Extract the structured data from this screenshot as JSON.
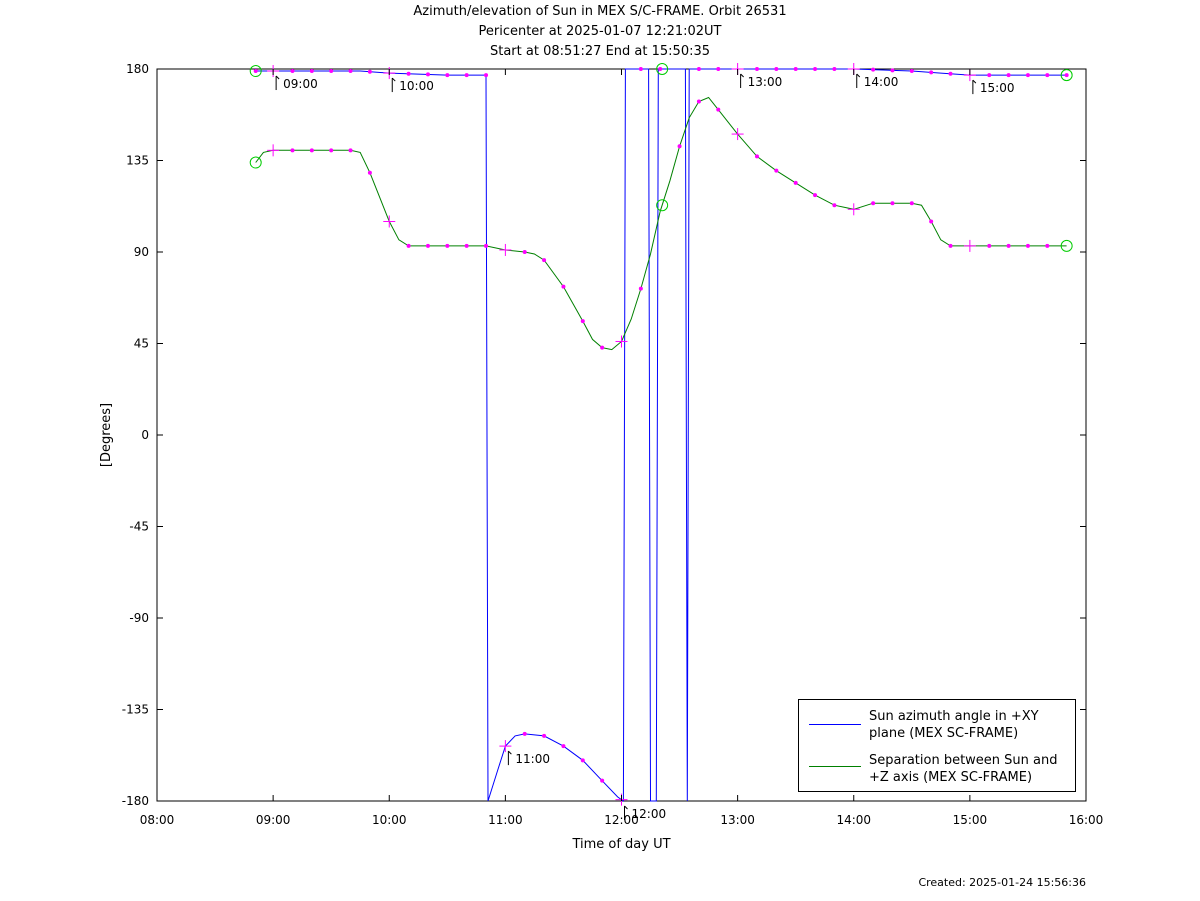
{
  "chart_data": {
    "type": "line",
    "title": "Azimuth/elevation of Sun in MEX S/C-FRAME.  Orbit 26531",
    "subtitle_lines": [
      "Pericenter at 2025-01-07 12:21:02UT",
      "Start at 08:51:27 End at 15:50:35"
    ],
    "xlabel": "Time of day UT",
    "ylabel": "[Degrees]",
    "xlim": [
      "08:00",
      "16:00"
    ],
    "ylim": [
      -180,
      180
    ],
    "x_ticks": [
      "08:00",
      "09:00",
      "10:00",
      "11:00",
      "12:00",
      "13:00",
      "14:00",
      "15:00",
      "16:00"
    ],
    "y_ticks": [
      180,
      135,
      90,
      45,
      0,
      -45,
      -90,
      -135,
      -180
    ],
    "legend_position": "bottom-right",
    "series": [
      {
        "name": "Sun azimuth angle in +XY plane (MEX SC-FRAME)",
        "color": "#0000ff",
        "points": [
          [
            "08:51",
            179
          ],
          [
            "09:00",
            179
          ],
          [
            "09:30",
            179
          ],
          [
            "09:45",
            179
          ],
          [
            "10:00",
            178
          ],
          [
            "10:30",
            177
          ],
          [
            "10:50",
            177
          ],
          [
            "10:51",
            -180
          ],
          [
            "10:56",
            -165
          ],
          [
            "11:00",
            -153
          ],
          [
            "11:05",
            -148
          ],
          [
            "11:10",
            -147
          ],
          [
            "11:20",
            -148
          ],
          [
            "11:30",
            -153
          ],
          [
            "11:40",
            -160
          ],
          [
            "11:50",
            -170
          ],
          [
            "11:58",
            -178
          ],
          [
            "12:01",
            -180
          ],
          [
            "12:02",
            180
          ],
          [
            "12:14",
            180
          ],
          [
            "12:15",
            -180
          ],
          [
            "12:18",
            -180
          ],
          [
            "12:19",
            180
          ],
          [
            "12:33",
            180
          ],
          [
            "12:34",
            -180
          ],
          [
            "12:35",
            180
          ],
          [
            "13:00",
            180
          ],
          [
            "13:30",
            180
          ],
          [
            "14:00",
            180
          ],
          [
            "14:30",
            179
          ],
          [
            "14:45",
            178
          ],
          [
            "15:00",
            177
          ],
          [
            "15:30",
            177
          ],
          [
            "15:50",
            177
          ]
        ],
        "dot_markers": [
          "08:51",
          "09:10",
          "09:20",
          "09:30",
          "09:40",
          "09:50",
          "10:10",
          "10:20",
          "10:30",
          "10:40",
          "10:50",
          "11:10",
          "11:20",
          "11:30",
          "11:40",
          "11:50",
          "12:10",
          "12:20",
          "12:40",
          "12:50",
          "13:10",
          "13:20",
          "13:30",
          "13:40",
          "13:50",
          "14:10",
          "14:20",
          "14:30",
          "14:40",
          "14:50",
          "15:10",
          "15:20",
          "15:30",
          "15:40",
          "15:50"
        ],
        "hour_markers": [
          "09:00",
          "10:00",
          "11:00",
          "12:00",
          "13:00",
          "14:00",
          "15:00"
        ],
        "circle_markers": [
          "08:51",
          "12:21",
          "15:50"
        ],
        "annotations": [
          {
            "time": "09:00",
            "value": 179,
            "label": "09:00"
          },
          {
            "time": "10:00",
            "value": 178,
            "label": "10:00"
          },
          {
            "time": "11:00",
            "value": -153,
            "label": "11:00"
          },
          {
            "time": "12:00",
            "value": -180,
            "label": "12:00"
          },
          {
            "time": "13:00",
            "value": 180,
            "label": "13:00"
          },
          {
            "time": "14:00",
            "value": 180,
            "label": "14:00"
          },
          {
            "time": "15:00",
            "value": 177,
            "label": "15:00"
          }
        ]
      },
      {
        "name": "Separation between Sun and +Z axis (MEX SC-FRAME)",
        "color": "#008000",
        "points": [
          [
            "08:51",
            134
          ],
          [
            "08:55",
            139
          ],
          [
            "09:00",
            140
          ],
          [
            "09:20",
            140
          ],
          [
            "09:30",
            140
          ],
          [
            "09:40",
            140
          ],
          [
            "09:45",
            139
          ],
          [
            "09:50",
            129
          ],
          [
            "10:00",
            105
          ],
          [
            "10:05",
            96
          ],
          [
            "10:10",
            93
          ],
          [
            "10:30",
            93
          ],
          [
            "10:50",
            93
          ],
          [
            "11:00",
            91
          ],
          [
            "11:10",
            90
          ],
          [
            "11:15",
            89
          ],
          [
            "11:20",
            86
          ],
          [
            "11:30",
            73
          ],
          [
            "11:40",
            56
          ],
          [
            "11:45",
            47
          ],
          [
            "11:50",
            43
          ],
          [
            "11:55",
            42
          ],
          [
            "12:00",
            46
          ],
          [
            "12:05",
            57
          ],
          [
            "12:10",
            72
          ],
          [
            "12:15",
            89
          ],
          [
            "12:20",
            110
          ],
          [
            "12:25",
            125
          ],
          [
            "12:30",
            142
          ],
          [
            "12:35",
            156
          ],
          [
            "12:40",
            164
          ],
          [
            "12:45",
            166
          ],
          [
            "12:50",
            160
          ],
          [
            "13:00",
            148
          ],
          [
            "13:10",
            137
          ],
          [
            "13:20",
            130
          ],
          [
            "13:30",
            124
          ],
          [
            "13:40",
            118
          ],
          [
            "13:50",
            113
          ],
          [
            "14:00",
            111
          ],
          [
            "14:10",
            114
          ],
          [
            "14:20",
            114
          ],
          [
            "14:30",
            114
          ],
          [
            "14:35",
            113
          ],
          [
            "14:40",
            105
          ],
          [
            "14:45",
            96
          ],
          [
            "14:50",
            93
          ],
          [
            "15:00",
            93
          ],
          [
            "15:30",
            93
          ],
          [
            "15:50",
            93
          ]
        ],
        "dot_markers": [
          "09:10",
          "09:20",
          "09:30",
          "09:40",
          "09:50",
          "10:10",
          "10:20",
          "10:30",
          "10:40",
          "10:50",
          "11:10",
          "11:20",
          "11:30",
          "11:40",
          "11:50",
          "12:10",
          "12:30",
          "12:40",
          "12:50",
          "13:10",
          "13:20",
          "13:30",
          "13:40",
          "13:50",
          "14:10",
          "14:20",
          "14:30",
          "14:40",
          "14:50",
          "15:10",
          "15:20",
          "15:30",
          "15:40"
        ],
        "hour_markers": [
          "09:00",
          "10:00",
          "11:00",
          "12:00",
          "13:00",
          "14:00",
          "15:00"
        ],
        "circle_markers": [
          "08:51",
          "12:21",
          "15:50"
        ]
      }
    ],
    "footer": "Created: 2025-01-24 15:56:36"
  }
}
